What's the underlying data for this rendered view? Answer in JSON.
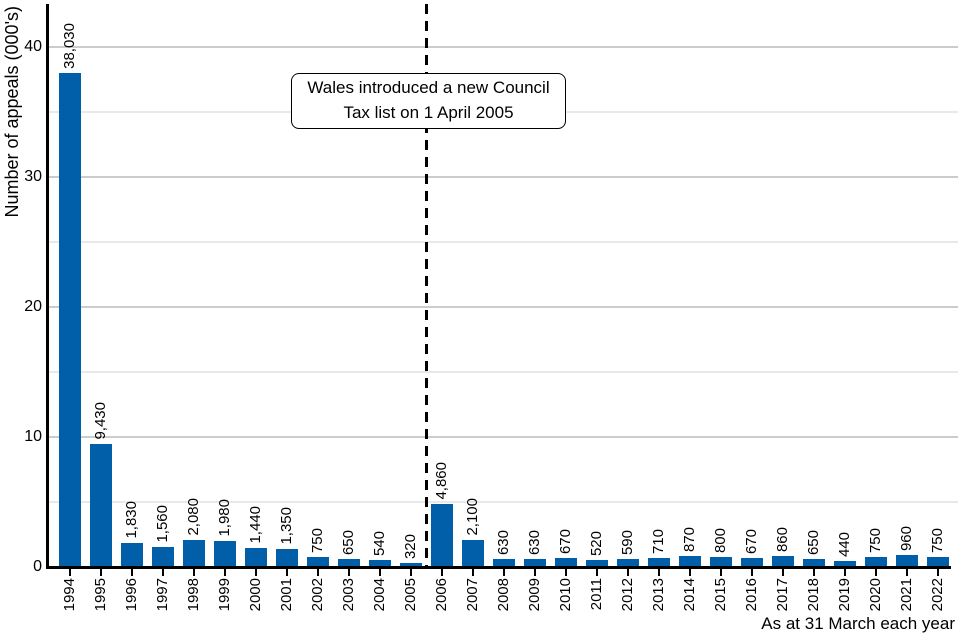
{
  "chart_data": {
    "type": "bar",
    "title": "",
    "ylabel": "Number of appeals (000's)",
    "x_caption": "As at 31 March each year",
    "y_ticks": [
      0,
      10,
      20,
      30,
      40
    ],
    "ylim": [
      0,
      43.3
    ],
    "grid": "horizontal gridlines every 5 (000's); lines at multiples of 10 slightly darker",
    "legend": "none",
    "categories": [
      "1994",
      "1995",
      "1996",
      "1997",
      "1998",
      "1999",
      "2000",
      "2001",
      "2002",
      "2003",
      "2004",
      "2005",
      "2006",
      "2007",
      "2008",
      "2009",
      "2010",
      "2011",
      "2012",
      "2013",
      "2014",
      "2015",
      "2016",
      "2017",
      "2018",
      "2019",
      "2020",
      "2021",
      "2022"
    ],
    "values": [
      38030,
      9430,
      1830,
      1560,
      2080,
      1980,
      1440,
      1350,
      750,
      650,
      540,
      320,
      4860,
      2100,
      630,
      630,
      670,
      520,
      590,
      710,
      870,
      800,
      670,
      860,
      650,
      440,
      750,
      960,
      750
    ],
    "value_labels": [
      "38,030",
      "9,430",
      "1,830",
      "1,560",
      "2,080",
      "1,980",
      "1,440",
      "1,350",
      "750",
      "650",
      "540",
      "320",
      "4,860",
      "2,100",
      "630",
      "630",
      "670",
      "520",
      "590",
      "710",
      "870",
      "800",
      "670",
      "860",
      "650",
      "440",
      "750",
      "960",
      "750"
    ],
    "annotation": {
      "lines": [
        "Wales introduced a new Council",
        "Tax list on 1 April 2005"
      ],
      "divider_between": [
        "2005",
        "2006"
      ],
      "divider_style": "dashed-vertical-line"
    },
    "colors": {
      "bar": "#005fa8",
      "grid_major": "#cccccc",
      "grid_minor": "#e9e9e9",
      "axis": "#000000",
      "annotation_border": "#000000",
      "text": "#000000"
    }
  }
}
